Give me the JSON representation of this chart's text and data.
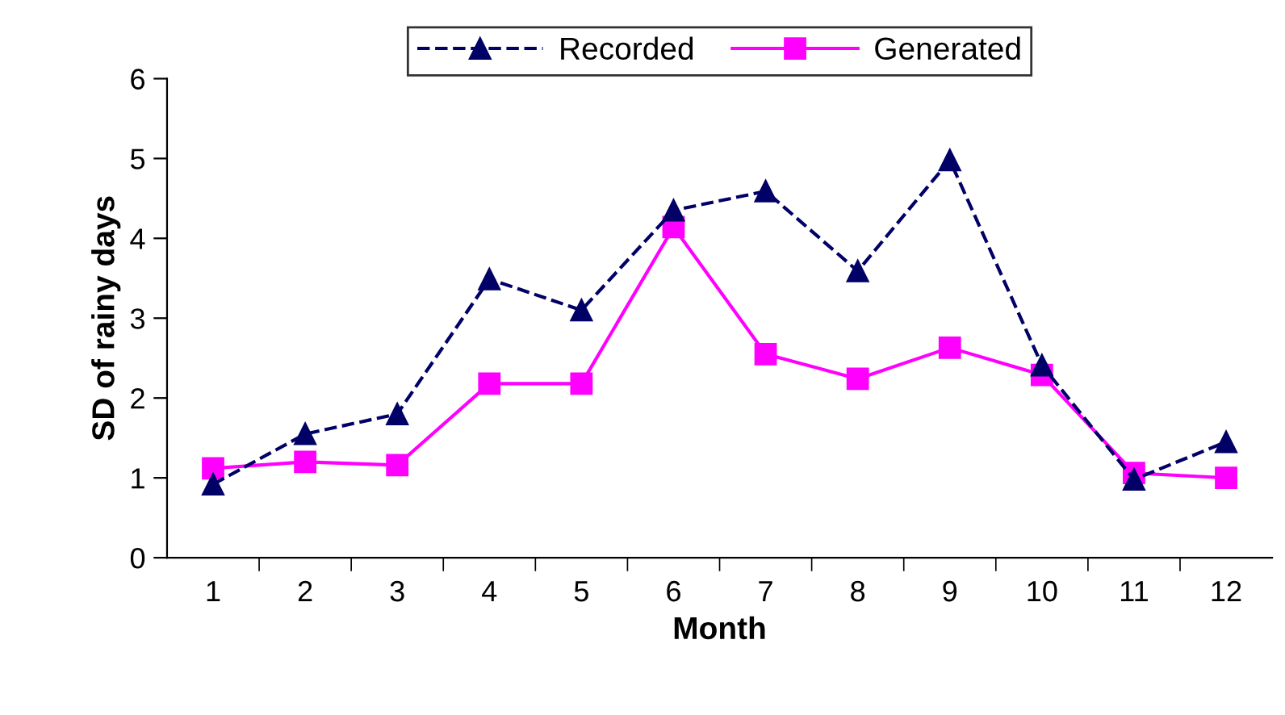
{
  "chart_data": {
    "type": "line",
    "xlabel": "Month",
    "ylabel": "SD of rainy days",
    "categories": [
      "1",
      "2",
      "3",
      "4",
      "5",
      "6",
      "7",
      "8",
      "9",
      "10",
      "11",
      "12"
    ],
    "series": [
      {
        "name": "Recorded",
        "color": "#000066",
        "marker": "triangle",
        "line_style": "dashed",
        "values": [
          0.92,
          1.55,
          1.8,
          3.49,
          3.1,
          4.35,
          4.59,
          3.59,
          4.98,
          2.41,
          0.98,
          1.45
        ]
      },
      {
        "name": "Generated",
        "color": "#ff00ff",
        "marker": "square",
        "line_style": "solid",
        "values": [
          1.12,
          1.2,
          1.16,
          2.18,
          2.18,
          4.14,
          2.55,
          2.24,
          2.63,
          2.29,
          1.06,
          1.0
        ]
      }
    ],
    "ylim": [
      0,
      6
    ],
    "yticks": [
      0,
      1,
      2,
      3,
      4,
      5,
      6
    ],
    "grid": false,
    "legend": "top"
  }
}
